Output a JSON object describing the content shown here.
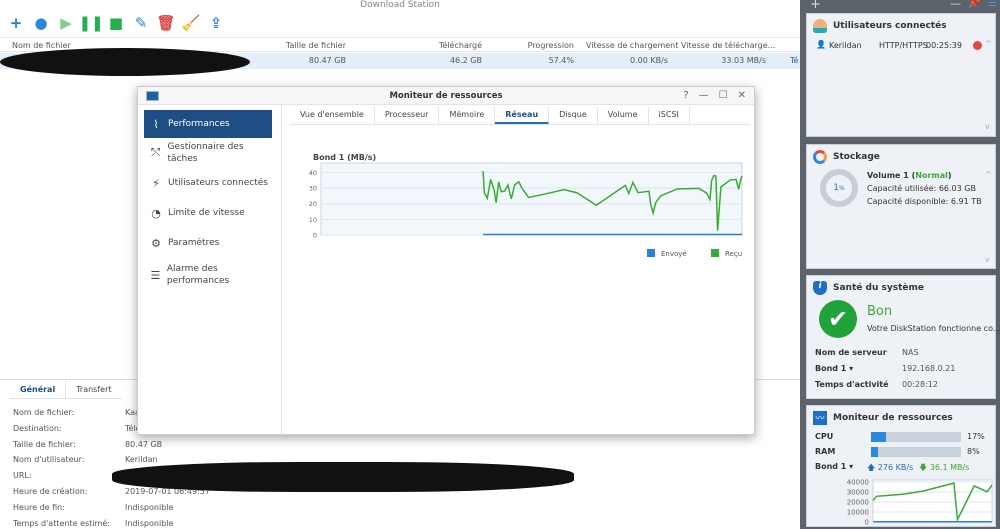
{
  "app": {
    "title": "Download Station"
  },
  "toolbar": [
    {
      "name": "add-icon",
      "glyph": "+",
      "color": "#1f7fd8"
    },
    {
      "name": "add-url-icon",
      "glyph": "●",
      "color": "#2a88d8"
    },
    {
      "name": "resume-icon",
      "glyph": "▶",
      "color": "#7fd08a"
    },
    {
      "name": "pause-icon",
      "glyph": "❚❚",
      "color": "#22b14c"
    },
    {
      "name": "stop-icon",
      "glyph": "■",
      "color": "#22b14c"
    },
    {
      "name": "edit-icon",
      "glyph": "✎",
      "color": "#2a88d8"
    },
    {
      "name": "delete-icon",
      "glyph": "🗑",
      "color": "#e04848"
    },
    {
      "name": "clear-icon",
      "glyph": "🧹",
      "color": "#555"
    },
    {
      "name": "share-icon",
      "glyph": "⇪",
      "color": "#2a88d8"
    }
  ],
  "table": {
    "columns": [
      "Nom de fichier",
      "Taille de fichier",
      "Téléchargé",
      "Progression",
      "Vitesse de chargement",
      "Vitesse de télécharge..."
    ],
    "rows": [
      {
        "size": "80.47 GB",
        "downloaded": "46.2 GB",
        "progress": "57.4%",
        "upload": "0.00 KB/s",
        "download": "33.03 MB/s",
        "status": "Té"
      }
    ]
  },
  "details": {
    "tabs": [
      "Général",
      "Transfert"
    ],
    "fields": [
      {
        "label": "Nom de fichier:",
        "value": "Kaa"
      },
      {
        "label": "Destination:",
        "value": "Télé"
      },
      {
        "label": "Taille de fichier:",
        "value": "80.47 GB"
      },
      {
        "label": "Nom d'utilisateur:",
        "value": "Kerildan"
      },
      {
        "label": "URL:",
        "value": ""
      },
      {
        "label": "Heure de création:",
        "value": "2019-07-01 06:49:57"
      },
      {
        "label": "Heure de fin:",
        "value": "Indisponible"
      },
      {
        "label": "Temps d'attente estimé:",
        "value": "Indisponible"
      }
    ]
  },
  "monitor": {
    "title": "Moniteur de ressources",
    "sidebar": [
      {
        "label": "Performances",
        "icon": "performance-icon",
        "glyph": "⌇"
      },
      {
        "label": "Gestionnaire des tâches",
        "icon": "task-manager-icon",
        "glyph": "⤲"
      },
      {
        "label": "Utilisateurs connectés",
        "icon": "plug-icon",
        "glyph": "⚡"
      },
      {
        "label": "Limite de vitesse",
        "icon": "speed-limit-icon",
        "glyph": "◔"
      },
      {
        "label": "Paramètres",
        "icon": "gear-icon",
        "glyph": "⚙"
      },
      {
        "label": "Alarme des performances",
        "icon": "alarm-list-icon",
        "glyph": "☰"
      }
    ],
    "tabs": [
      "Vue d'ensemble",
      "Processeur",
      "Mémoire",
      "Réseau",
      "Disque",
      "Volume",
      "iSCSI"
    ],
    "active_tab": "Réseau"
  },
  "chart_data": [
    {
      "type": "line",
      "title": "Bond 1 (MB/s)",
      "ylim": [
        0,
        46
      ],
      "yticks": [
        0,
        10,
        20,
        30,
        40
      ],
      "grid": true,
      "legend": "bottom-right",
      "series": [
        {
          "name": "Envoyé",
          "color": "#2b7fd8",
          "x": [
            38.5,
            100
          ],
          "y": [
            0.3,
            0.3
          ]
        },
        {
          "name": "Reçu",
          "color": "#3aaa35",
          "x": [
            38.5,
            38.8,
            39.5,
            40.3,
            41.1,
            41.6,
            42.2,
            42.8,
            43.6,
            44.4,
            45.2,
            46,
            47,
            47.7,
            49.3,
            52.9,
            57.7,
            60.8,
            65.4,
            72.3,
            73.1,
            74.1,
            75.3,
            77.9,
            78.3,
            78.9,
            79.5,
            80.7,
            84.6,
            89.8,
            91.6,
            92.4,
            92.8,
            93.3,
            93.8,
            94.2,
            95,
            97.2,
            98.6,
            99.2,
            99.7,
            100
          ],
          "y": [
            40.8,
            27,
            23.5,
            35.5,
            29,
            20.7,
            34,
            27.7,
            28,
            32,
            23,
            32,
            34,
            30,
            24,
            26,
            29,
            27,
            19,
            31.7,
            26.5,
            33.6,
            27,
            28,
            19.7,
            14,
            20.7,
            25,
            29.4,
            29.8,
            26.7,
            22.8,
            35,
            37.9,
            37.7,
            2.8,
            30.7,
            35.1,
            35.5,
            29.2,
            35.5,
            37.7
          ]
        }
      ]
    },
    {
      "type": "line",
      "ylim": [
        0,
        42000
      ],
      "yticks": [
        0,
        10000,
        20000,
        30000,
        40000
      ],
      "series": [
        {
          "color": "#2b7fd8",
          "x": [
            0,
            100
          ],
          "y": [
            276,
            276
          ]
        },
        {
          "color": "#3aaa35",
          "x": [
            0,
            3,
            25,
            42,
            68,
            71,
            85,
            96,
            100
          ],
          "y": [
            21500,
            25700,
            27800,
            30900,
            38900,
            2400,
            36100,
            30200,
            37100
          ]
        }
      ]
    }
  ],
  "widgets": {
    "users": {
      "title": "Utilisateurs connectés",
      "user": "Kerildan",
      "protocol": "HTTP/HTTPS",
      "time": "00:25:39"
    },
    "storage": {
      "title": "Stockage",
      "percent": "1",
      "unit": "%",
      "volume": "Volume 1",
      "status": "Normal",
      "used": "Capacité utilisée: 66.03 GB",
      "free": "Capacité disponible: 6.91 TB",
      "status_color": "#3aaa35"
    },
    "health": {
      "title": "Santé du système",
      "status": "Bon",
      "message": "Votre DiskStation fonctionne co...",
      "rows": [
        {
          "label": "Nom de serveur",
          "value": "NAS"
        },
        {
          "label": "Bond 1 ▾",
          "value": "192.168.0.21"
        },
        {
          "label": "Temps d'activité",
          "value": "00:28:12"
        }
      ]
    },
    "resources": {
      "title": "Moniteur de ressources",
      "cpu_label": "CPU",
      "cpu": 17,
      "cpu_text": "17%",
      "ram_label": "RAM",
      "ram": 8,
      "ram_text": "8%",
      "bond": "Bond 1 ▾",
      "up": "276 KB/s",
      "down": "36.1 MB/s"
    }
  }
}
